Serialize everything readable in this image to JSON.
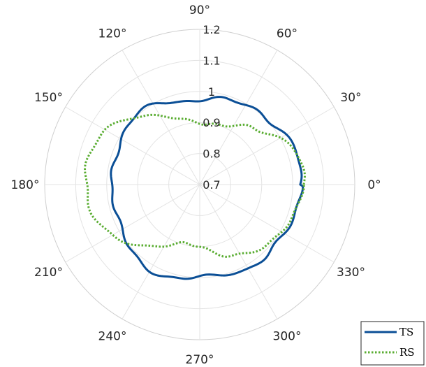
{
  "chart_data": {
    "type": "line",
    "polar": true,
    "title": "",
    "r_ticks": [
      "0.7",
      "0.8",
      "0.9",
      "1",
      "1.1",
      "1.2"
    ],
    "rlim": [
      0.7,
      1.2
    ],
    "theta_tick_labels": [
      "0°",
      "30°",
      "60°",
      "90°",
      "120°",
      "150°",
      "180°",
      "210°",
      "240°",
      "270°",
      "300°",
      "330°"
    ],
    "grid": true,
    "legend_position": "bottom-right",
    "series": [
      {
        "name": "TS",
        "color": "#0b4f96",
        "style": "solid",
        "theta_deg": [
          0,
          10,
          20,
          30,
          40,
          50,
          60,
          70,
          80,
          90,
          100,
          110,
          120,
          130,
          140,
          150,
          160,
          170,
          180,
          190,
          200,
          210,
          220,
          230,
          240,
          250,
          260,
          270,
          280,
          290,
          300,
          310,
          320,
          330,
          340,
          350
        ],
        "r": [
          1.024,
          1.022,
          1.027,
          1.02,
          1.01,
          1.005,
          0.995,
          0.985,
          0.98,
          0.975,
          0.975,
          0.985,
          0.995,
          1.0,
          1.0,
          0.995,
          0.99,
          0.985,
          0.98,
          0.98,
          0.985,
          0.995,
          1.005,
          1.01,
          1.015,
          1.015,
          1.01,
          1.0,
          1.0,
          1.0,
          1.01,
          1.015,
          1.015,
          1.02,
          1.02,
          1.02
        ]
      },
      {
        "name": "RS",
        "color": "#5aad32",
        "style": "dotted",
        "theta_deg": [
          0,
          10,
          20,
          30,
          40,
          50,
          60,
          70,
          80,
          90,
          100,
          110,
          120,
          130,
          140,
          150,
          160,
          170,
          180,
          190,
          200,
          210,
          220,
          230,
          240,
          250,
          260,
          270,
          280,
          290,
          300,
          310,
          320,
          330,
          340,
          350
        ],
        "r": [
          1.03,
          1.03,
          1.025,
          1.0,
          0.97,
          0.95,
          0.92,
          0.9,
          0.89,
          0.895,
          0.91,
          0.935,
          0.96,
          0.99,
          1.02,
          1.045,
          1.06,
          1.07,
          1.07,
          1.07,
          1.055,
          1.025,
          0.99,
          0.955,
          0.925,
          0.905,
          0.9,
          0.905,
          0.92,
          0.94,
          0.955,
          0.975,
          0.995,
          1.01,
          1.02,
          1.03
        ]
      }
    ]
  }
}
